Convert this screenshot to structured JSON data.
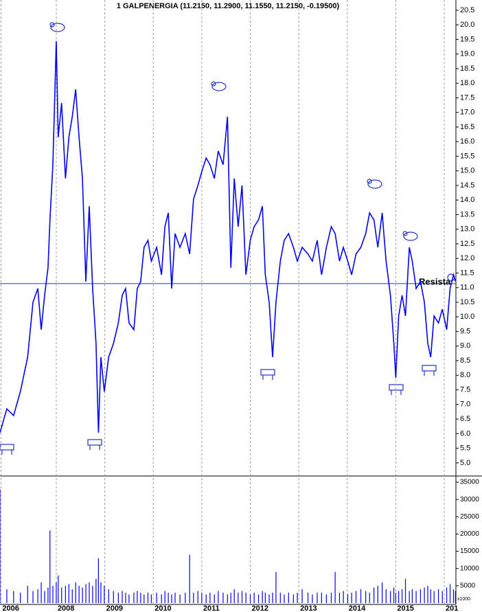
{
  "chart_data": [
    {
      "type": "line",
      "title": "1 GALPENERGIA (11.2150, 11.2900, 11.1550, 11.2150, -0.19500)",
      "color": "#0000ff",
      "x": [
        2006.84,
        2006.98,
        2007.12,
        2007.26,
        2007.41,
        2007.52,
        2007.62,
        2007.69,
        2007.76,
        2007.83,
        2007.87,
        2007.93,
        2008.0,
        2008.04,
        2008.11,
        2008.19,
        2008.26,
        2008.33,
        2008.4,
        2008.47,
        2008.54,
        2008.61,
        2008.68,
        2008.75,
        2008.82,
        2008.87,
        2008.92,
        2008.99,
        2009.08,
        2009.18,
        2009.28,
        2009.36,
        2009.43,
        2009.5,
        2009.6,
        2009.67,
        2009.74,
        2009.81,
        2009.89,
        2009.96,
        2010.07,
        2010.17,
        2010.24,
        2010.31,
        2010.38,
        2010.45,
        2010.55,
        2010.66,
        2010.75,
        2010.83,
        2010.92,
        2011.0,
        2011.09,
        2011.17,
        2011.26,
        2011.34,
        2011.44,
        2011.53,
        2011.6,
        2011.67,
        2011.75,
        2011.83,
        2011.91,
        2012.0,
        2012.08,
        2012.17,
        2012.25,
        2012.31,
        2012.39,
        2012.46,
        2012.53,
        2012.62,
        2012.7,
        2012.79,
        2012.89,
        2012.97,
        2013.07,
        2013.19,
        2013.28,
        2013.38,
        2013.47,
        2013.57,
        2013.67,
        2013.75,
        2013.84,
        2013.92,
        2014.01,
        2014.09,
        2014.18,
        2014.28,
        2014.38,
        2014.46,
        2014.55,
        2014.63,
        2014.72,
        2014.8,
        2014.89,
        2014.96,
        2015.0,
        2015.06,
        2015.13,
        2015.2,
        2015.28,
        2015.34,
        2015.42,
        2015.51,
        2015.59,
        2015.66,
        2015.72,
        2015.79,
        2015.88,
        2015.96,
        2016.05,
        2016.12,
        2016.19,
        2016.23
      ],
      "values": [
        6.03,
        6.85,
        6.62,
        7.44,
        8.62,
        10.5,
        10.97,
        9.56,
        10.74,
        11.68,
        13.32,
        15.21,
        19.44,
        16.15,
        17.32,
        14.74,
        16.15,
        16.85,
        17.79,
        16.15,
        14.74,
        11.21,
        13.79,
        10.97,
        9.09,
        6.03,
        8.62,
        7.44,
        8.62,
        9.09,
        9.79,
        10.74,
        10.97,
        9.79,
        9.56,
        10.97,
        11.21,
        12.38,
        12.62,
        11.91,
        12.38,
        11.44,
        13.09,
        13.56,
        10.97,
        12.85,
        12.38,
        12.85,
        12.15,
        14.03,
        14.5,
        14.97,
        15.44,
        15.21,
        14.74,
        15.68,
        15.21,
        16.85,
        11.68,
        14.74,
        13.09,
        14.5,
        11.44,
        12.62,
        13.09,
        13.32,
        13.79,
        11.44,
        10.5,
        8.62,
        10.5,
        11.91,
        12.62,
        12.85,
        12.38,
        11.91,
        12.38,
        12.15,
        11.91,
        12.62,
        11.44,
        12.38,
        13.09,
        12.85,
        11.91,
        12.38,
        11.91,
        11.44,
        12.15,
        12.38,
        12.85,
        13.56,
        13.32,
        12.38,
        13.56,
        11.91,
        10.74,
        9.09,
        7.91,
        10.03,
        10.74,
        10.03,
        12.38,
        11.91,
        10.97,
        11.21,
        10.5,
        9.09,
        8.62,
        10.03,
        9.79,
        10.26,
        9.56,
        10.97,
        11.44,
        11.22
      ],
      "xlim": [
        2006.84,
        2016.24
      ],
      "xticks": [
        {
          "value": 2006.86,
          "label": "2006"
        },
        2008,
        2009,
        2010,
        2011,
        2012,
        2013,
        2014,
        2015,
        {
          "value": 2016,
          "label": "201"
        }
      ],
      "ylim": [
        4.55,
        20.85
      ],
      "yticks": [
        {
          "value": 5,
          "label": "5.0"
        },
        5.5,
        {
          "value": 6,
          "label": "6.0"
        },
        6.5,
        {
          "value": 7,
          "label": "7.0"
        },
        7.5,
        {
          "value": 8,
          "label": "8.0"
        },
        8.5,
        {
          "value": 9,
          "label": "9.0"
        },
        9.5,
        {
          "value": 10,
          "label": "10.0"
        },
        10.5,
        {
          "value": 11,
          "label": "11.0"
        },
        11.5,
        {
          "value": 12,
          "label": "12.0"
        },
        12.5,
        {
          "value": 13,
          "label": "13.0"
        },
        13.5,
        {
          "value": 14,
          "label": "14.0"
        },
        14.5,
        {
          "value": 15,
          "label": "15.0"
        },
        15.5,
        {
          "value": 16,
          "label": "16.0"
        },
        16.5,
        {
          "value": 17,
          "label": "17.0"
        },
        17.5,
        {
          "value": 18,
          "label": "18.0"
        },
        18.5,
        {
          "value": 19,
          "label": "19.0"
        },
        19.5,
        {
          "value": 20,
          "label": "20.0"
        },
        20.5
      ],
      "annotations": [
        {
          "text": "Resista",
          "value": 11.14
        }
      ]
    },
    {
      "type": "bar",
      "color": "#0000ff",
      "unit_label": "x1000",
      "values": [
        33000,
        4000,
        3500,
        3000,
        5000,
        3500,
        4000,
        6000,
        3500,
        4500,
        21000,
        5000,
        6000,
        8000,
        4500,
        5000,
        5500,
        4000,
        6000,
        5000,
        4500,
        5500,
        6000,
        5000,
        7000,
        13000,
        6000,
        5000,
        4000,
        3500,
        3000,
        3500,
        3000,
        2500,
        3000,
        3500,
        3000,
        2500,
        3000,
        2500,
        3000,
        2500,
        3500,
        3000,
        2500,
        3000,
        2500,
        3000,
        14000,
        3000,
        3500,
        3000,
        2500,
        3000,
        2500,
        3500,
        3000,
        2500,
        3000,
        4000,
        3000,
        3500,
        3000,
        2500,
        3000,
        2500,
        3500,
        3000,
        2500,
        3000,
        9000,
        3000,
        2500,
        3000,
        2500,
        3000,
        4000,
        3000,
        2500,
        3000,
        3000,
        2500,
        3000,
        9000,
        3000,
        3500,
        2500,
        3000,
        3500,
        4000,
        3500,
        3000,
        4500,
        5000,
        6000,
        4000,
        3500,
        4500,
        3000,
        3500,
        4000,
        7000,
        3500,
        4000,
        3500,
        4000,
        4500,
        5000,
        4000,
        3500,
        4000,
        3500,
        4500,
        5500,
        4000,
        3500
      ],
      "ylim": [
        0,
        36400
      ],
      "yticks": [
        5000,
        10000,
        15000,
        20000,
        25000,
        30000,
        35000
      ]
    }
  ]
}
